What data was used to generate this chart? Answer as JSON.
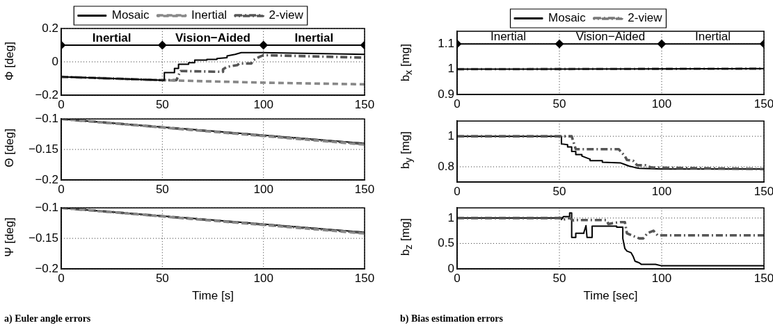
{
  "chart_data": [
    {
      "type": "line",
      "ylabel": "Φ [deg]",
      "xlim": [
        0,
        150
      ],
      "xticks": [
        0,
        50,
        100,
        150
      ],
      "ylim": [
        -0.2,
        0.2
      ],
      "yticks": [
        -0.2,
        0,
        0.2
      ],
      "grid": true,
      "legend": "top",
      "marker": "none",
      "annotations": [
        "Inertial",
        "Vision−Aided",
        "Inertial"
      ],
      "series": [
        {
          "name": "Mosaic",
          "color": "#000000",
          "line_style": "solid",
          "x": [
            0,
            50,
            51,
            51,
            56,
            56,
            58,
            58,
            63,
            63,
            66,
            66,
            72,
            72,
            77,
            77,
            82,
            82,
            86,
            89,
            100,
            150
          ],
          "values": [
            -0.09,
            -0.11,
            -0.11,
            -0.065,
            -0.065,
            -0.04,
            -0.04,
            -0.015,
            -0.015,
            -0.005,
            -0.005,
            0.01,
            0.01,
            0.015,
            0.015,
            0.02,
            0.025,
            0.035,
            0.045,
            0.055,
            0.055,
            0.045
          ]
        },
        {
          "name": "Inertial",
          "color": "#888888",
          "line_style": "dashed",
          "x": [
            0,
            50,
            100,
            150
          ],
          "values": [
            -0.09,
            -0.11,
            -0.125,
            -0.135
          ]
        },
        {
          "name": "2-view",
          "color": "#555555",
          "line_style": "dashdot",
          "x": [
            0,
            50,
            57,
            58,
            59,
            80,
            80,
            82,
            87,
            88,
            94,
            95,
            98,
            100,
            150
          ],
          "values": [
            -0.09,
            -0.11,
            -0.11,
            -0.08,
            -0.055,
            -0.06,
            -0.045,
            -0.03,
            -0.02,
            -0.01,
            -0.01,
            0.01,
            0.03,
            0.04,
            0.025
          ]
        },
        {
          "color": "#000000",
          "line_style": "solid",
          "marker": "diamond",
          "x": [
            0,
            50,
            100,
            150
          ],
          "values": [
            0.1,
            0.1,
            0.1,
            0.1
          ]
        }
      ]
    },
    {
      "type": "line",
      "ylabel": "Θ [deg]",
      "xlim": [
        0,
        150
      ],
      "xticks": [
        0,
        50,
        100,
        150
      ],
      "ylim": [
        -0.2,
        -0.1
      ],
      "yticks": [
        -0.2,
        -0.15,
        -0.1
      ],
      "grid": true,
      "marker": "none",
      "series": [
        {
          "color": "#888888",
          "line_style": "dashed",
          "x": [
            0,
            150
          ],
          "values": [
            -0.1,
            -0.142
          ]
        },
        {
          "color": "#555555",
          "line_style": "dashdot",
          "x": [
            0,
            150
          ],
          "values": [
            -0.1,
            -0.141
          ]
        },
        {
          "color": "#000000",
          "line_style": "solid",
          "x": [
            0,
            150
          ],
          "values": [
            -0.1,
            -0.14
          ]
        }
      ]
    },
    {
      "type": "line",
      "ylabel": "Ψ [deg]",
      "xlabel": "Time [s]",
      "xlim": [
        0,
        150
      ],
      "xticks": [
        0,
        50,
        100,
        150
      ],
      "ylim": [
        -0.2,
        -0.1
      ],
      "yticks": [
        -0.2,
        -0.15,
        -0.1
      ],
      "grid": true,
      "marker": "none",
      "annotations": [
        "a) Euler angle errors"
      ],
      "series": [
        {
          "color": "#888888",
          "line_style": "dashed",
          "x": [
            0,
            150
          ],
          "values": [
            -0.1,
            -0.142
          ]
        },
        {
          "color": "#555555",
          "line_style": "dashdot",
          "x": [
            0,
            150
          ],
          "values": [
            -0.1,
            -0.141
          ]
        },
        {
          "color": "#000000",
          "line_style": "solid",
          "x": [
            0,
            150
          ],
          "values": [
            -0.1,
            -0.14
          ]
        }
      ]
    },
    {
      "type": "line",
      "ylabel": "b$_{x}$ [mg]",
      "xlim": [
        0,
        150
      ],
      "xticks": [
        0,
        50,
        100,
        150
      ],
      "ylim": [
        0.9,
        1.15
      ],
      "yticks": [
        0.9,
        1,
        1.1
      ],
      "grid": true,
      "legend": "top",
      "marker": "none",
      "annotations": [
        "Inertial",
        "Vision−Aided",
        "Inertial"
      ],
      "series": [
        {
          "name": "Mosaic",
          "color": "#000000",
          "line_style": "solid",
          "x": [
            0,
            150
          ],
          "values": [
            1,
            1.002
          ]
        },
        {
          "name": "2-view",
          "color": "#777777",
          "line_style": "dashdot",
          "x": [
            0,
            150
          ],
          "values": [
            1,
            1.002
          ]
        },
        {
          "color": "#000000",
          "line_style": "solid",
          "marker": "diamond",
          "x": [
            0,
            50,
            100,
            150
          ],
          "values": [
            1.1,
            1.1,
            1.1,
            1.1
          ]
        }
      ]
    },
    {
      "type": "line",
      "ylabel": "b$_{y}$ [mg]",
      "xlim": [
        0,
        150
      ],
      "xticks": [
        0,
        50,
        100,
        150
      ],
      "ylim": [
        0.7,
        1.1
      ],
      "yticks": [
        0.8,
        1
      ],
      "grid": true,
      "marker": "none",
      "series": [
        {
          "color": "#555555",
          "line_style": "dashdot",
          "x": [
            0,
            56,
            58,
            79,
            82,
            83,
            86,
            88,
            92,
            95,
            150
          ],
          "values": [
            1,
            1,
            0.915,
            0.915,
            0.87,
            0.845,
            0.84,
            0.81,
            0.81,
            0.795,
            0.785
          ]
        },
        {
          "color": "#000000",
          "line_style": "solid",
          "x": [
            0,
            51,
            51,
            54,
            54,
            56,
            56,
            58,
            58,
            61,
            61,
            63,
            65,
            65,
            71,
            71,
            80,
            82,
            84,
            87,
            89,
            100,
            150
          ],
          "values": [
            1,
            1,
            0.95,
            0.945,
            0.93,
            0.93,
            0.9,
            0.9,
            0.88,
            0.88,
            0.87,
            0.86,
            0.85,
            0.84,
            0.84,
            0.83,
            0.825,
            0.815,
            0.805,
            0.795,
            0.79,
            0.785,
            0.785
          ]
        }
      ]
    },
    {
      "type": "line",
      "ylabel": "b$_{z}$ [mg]",
      "xlabel": "Time [sec]",
      "xlim": [
        0,
        150
      ],
      "xticks": [
        0,
        50,
        100,
        150
      ],
      "ylim": [
        0,
        1.2
      ],
      "yticks": [
        0,
        0.5,
        1
      ],
      "grid": true,
      "marker": "none",
      "annotations": [
        "b) Bias estimation errors"
      ],
      "series": [
        {
          "color": "#555555",
          "line_style": "dashdot",
          "x": [
            0,
            51,
            52,
            55,
            57,
            58,
            73,
            74,
            76,
            80,
            82,
            83,
            86,
            89,
            91,
            93,
            96,
            98,
            150
          ],
          "values": [
            1,
            1,
            0.97,
            1,
            0.95,
            0.96,
            0.96,
            0.88,
            0.9,
            0.92,
            0.92,
            0.7,
            0.65,
            0.6,
            0.6,
            0.7,
            0.75,
            0.66,
            0.66
          ]
        },
        {
          "color": "#000000",
          "line_style": "solid",
          "x": [
            0,
            51,
            51,
            52,
            55,
            55,
            56,
            56,
            58,
            58,
            62,
            62,
            63,
            63.5,
            66,
            66,
            78,
            78,
            81,
            81,
            82,
            83,
            85,
            86,
            87,
            89,
            90,
            97,
            100,
            150
          ],
          "values": [
            1,
            1,
            0.97,
            1.03,
            1.03,
            1.1,
            1.1,
            0.62,
            0.62,
            0.7,
            0.7,
            0.72,
            0.85,
            0.62,
            0.62,
            0.84,
            0.84,
            0.82,
            0.82,
            0.6,
            0.4,
            0.35,
            0.32,
            0.25,
            0.15,
            0.12,
            0.09,
            0.09,
            0.06,
            0.06
          ]
        }
      ]
    }
  ]
}
